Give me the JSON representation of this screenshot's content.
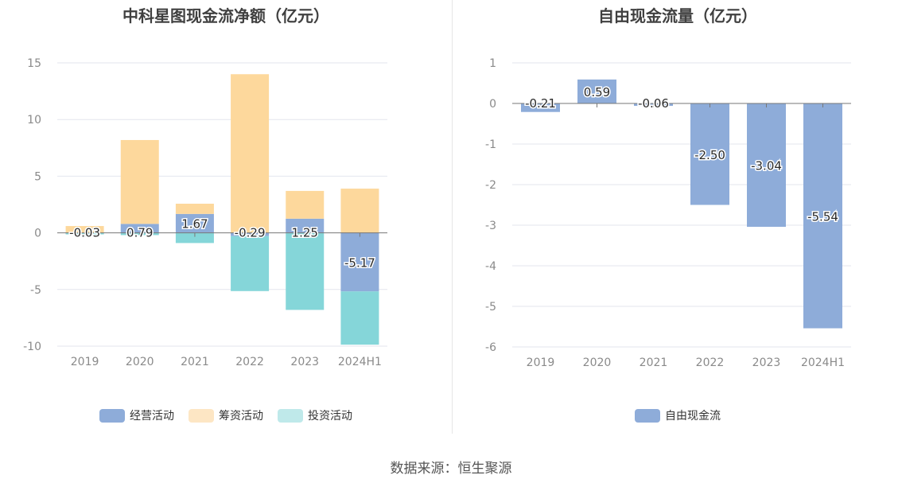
{
  "source_label": "数据来源：恒生聚源",
  "chart_data": [
    {
      "type": "bar",
      "stacked": true,
      "title": "中科星图现金流净额（亿元）",
      "categories": [
        "2019",
        "2020",
        "2021",
        "2022",
        "2023",
        "2024H1"
      ],
      "ylim": [
        -10,
        15
      ],
      "yticks": [
        15,
        10,
        5,
        0,
        -5,
        -10
      ],
      "grid": true,
      "legend_position": "bottom",
      "series": [
        {
          "name": "经营活动",
          "color": "#8eacd9",
          "values": [
            -0.03,
            0.79,
            1.67,
            -0.29,
            1.25,
            -5.17
          ],
          "labels": [
            "-0.03",
            "0.79",
            "1.67",
            "-0.29",
            "1.25",
            "-5.17"
          ]
        },
        {
          "name": "筹资活动",
          "color": "#fdd89c",
          "values": [
            0.6,
            7.4,
            0.9,
            14.0,
            2.45,
            3.9
          ]
        },
        {
          "name": "投资活动",
          "color": "#85d6d9",
          "values": [
            -0.1,
            -0.2,
            -0.9,
            -4.85,
            -6.8,
            -4.7
          ]
        }
      ]
    },
    {
      "type": "bar",
      "title": "自由现金流量（亿元）",
      "categories": [
        "2019",
        "2020",
        "2021",
        "2022",
        "2023",
        "2024H1"
      ],
      "ylim": [
        -6,
        1
      ],
      "yticks": [
        1,
        0,
        -1,
        -2,
        -3,
        -4,
        -5,
        -6
      ],
      "grid": true,
      "legend_position": "bottom",
      "series": [
        {
          "name": "自由现金流",
          "color": "#8eacd9",
          "values": [
            -0.21,
            0.59,
            -0.06,
            -2.5,
            -3.04,
            -5.54
          ],
          "labels": [
            "-0.21",
            "0.59",
            "-0.06",
            "-2.50",
            "-3.04",
            "-5.54"
          ]
        }
      ]
    }
  ]
}
